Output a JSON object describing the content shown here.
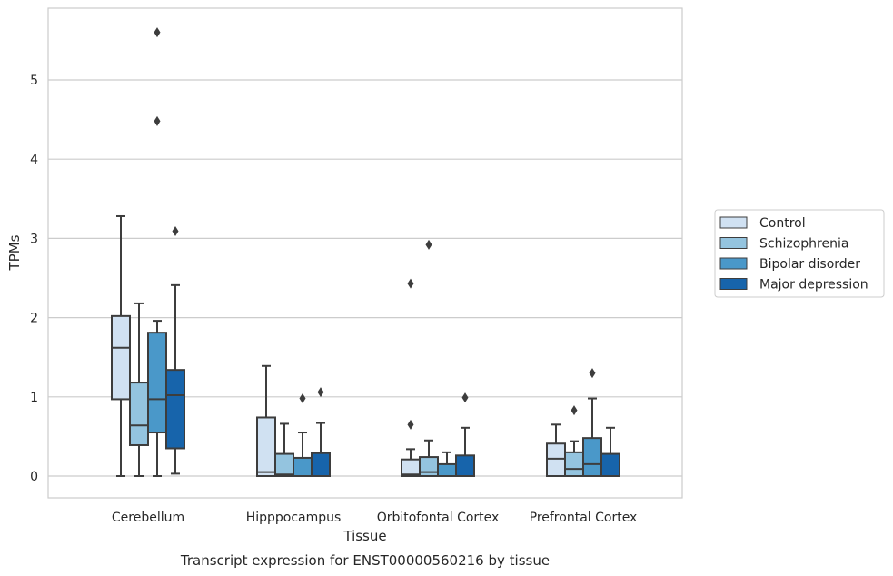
{
  "caption": "Transcript expression for ENST00000560216 by tissue",
  "chart_data": {
    "type": "box",
    "xlabel": "Tissue",
    "ylabel": "TPMs",
    "ylim": [
      -0.27,
      5.9
    ],
    "yticks": [
      0,
      1,
      2,
      3,
      4,
      5
    ],
    "grid": "horizontal",
    "legend_placement": "right",
    "categories": [
      "Cerebellum",
      "Hipppocampus",
      "Orbitofontal Cortex",
      "Prefrontal Cortex"
    ],
    "series": [
      {
        "name": "Control",
        "color": "#d0e1f2",
        "boxes": [
          {
            "whisker_low": 0.0,
            "q1": 0.97,
            "median": 1.62,
            "q3": 2.02,
            "whisker_high": 3.28,
            "outliers": []
          },
          {
            "whisker_low": 0.0,
            "q1": 0.0,
            "median": 0.05,
            "q3": 0.74,
            "whisker_high": 1.39,
            "outliers": []
          },
          {
            "whisker_low": 0.0,
            "q1": 0.0,
            "median": 0.02,
            "q3": 0.21,
            "whisker_high": 0.34,
            "outliers": [
              0.65,
              2.43
            ]
          },
          {
            "whisker_low": 0.0,
            "q1": 0.0,
            "median": 0.22,
            "q3": 0.41,
            "whisker_high": 0.65,
            "outliers": []
          }
        ]
      },
      {
        "name": "Schizophrenia",
        "color": "#94c4df",
        "boxes": [
          {
            "whisker_low": 0.0,
            "q1": 0.39,
            "median": 0.64,
            "q3": 1.18,
            "whisker_high": 2.18,
            "outliers": []
          },
          {
            "whisker_low": 0.0,
            "q1": 0.0,
            "median": 0.02,
            "q3": 0.28,
            "whisker_high": 0.66,
            "outliers": []
          },
          {
            "whisker_low": 0.0,
            "q1": 0.0,
            "median": 0.05,
            "q3": 0.24,
            "whisker_high": 0.45,
            "outliers": [
              2.92
            ]
          },
          {
            "whisker_low": 0.0,
            "q1": 0.0,
            "median": 0.09,
            "q3": 0.3,
            "whisker_high": 0.44,
            "outliers": [
              0.83
            ]
          }
        ]
      },
      {
        "name": "Bipolar disorder",
        "color": "#4a98c9",
        "boxes": [
          {
            "whisker_low": 0.0,
            "q1": 0.55,
            "median": 0.97,
            "q3": 1.81,
            "whisker_high": 1.96,
            "outliers": [
              4.48,
              5.6
            ]
          },
          {
            "whisker_low": 0.0,
            "q1": 0.0,
            "median": 0.0,
            "q3": 0.23,
            "whisker_high": 0.55,
            "outliers": [
              0.98
            ]
          },
          {
            "whisker_low": 0.0,
            "q1": 0.0,
            "median": 0.0,
            "q3": 0.15,
            "whisker_high": 0.3,
            "outliers": []
          },
          {
            "whisker_low": 0.0,
            "q1": 0.0,
            "median": 0.15,
            "q3": 0.48,
            "whisker_high": 0.98,
            "outliers": [
              1.3
            ]
          }
        ]
      },
      {
        "name": "Major depression",
        "color": "#1764ab",
        "boxes": [
          {
            "whisker_low": 0.03,
            "q1": 0.35,
            "median": 1.02,
            "q3": 1.34,
            "whisker_high": 2.41,
            "outliers": [
              3.09
            ]
          },
          {
            "whisker_low": 0.0,
            "q1": 0.0,
            "median": 0.0,
            "q3": 0.29,
            "whisker_high": 0.67,
            "outliers": [
              1.06
            ]
          },
          {
            "whisker_low": 0.0,
            "q1": 0.0,
            "median": 0.0,
            "q3": 0.26,
            "whisker_high": 0.61,
            "outliers": [
              0.99
            ]
          },
          {
            "whisker_low": 0.0,
            "q1": 0.0,
            "median": 0.0,
            "q3": 0.28,
            "whisker_high": 0.61,
            "outliers": []
          }
        ]
      }
    ]
  }
}
